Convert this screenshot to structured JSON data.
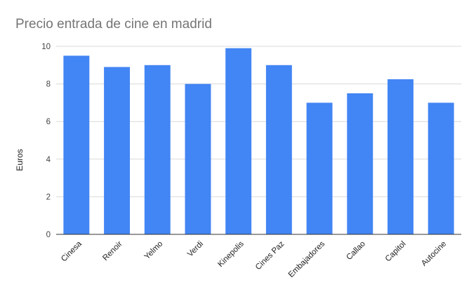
{
  "chart_data": {
    "type": "bar",
    "title": "Precio entrada de cine en madrid",
    "xlabel": "",
    "ylabel": "Euros",
    "categories": [
      "Cinesa",
      "Renoir",
      "Yelmo",
      "Verdi",
      "Kinepolis",
      "Cines Paz",
      "Embajadores",
      "Callao",
      "Capitol",
      "Autocine"
    ],
    "values": [
      9.5,
      8.9,
      9.0,
      8.0,
      9.9,
      9.0,
      7.0,
      7.5,
      8.25,
      7.0
    ],
    "ylim": [
      0,
      10
    ],
    "yticks": [
      0,
      2,
      4,
      6,
      8,
      10
    ],
    "grid": true,
    "legend": "none",
    "colors": {
      "bar": "#4285f4"
    }
  }
}
